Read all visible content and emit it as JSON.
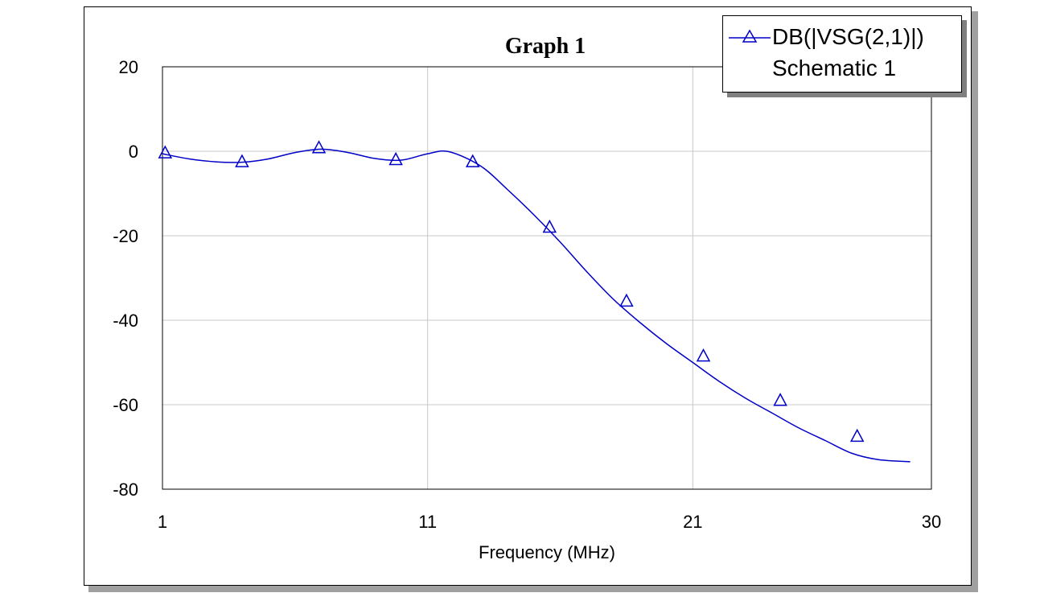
{
  "chart_data": {
    "type": "line",
    "title": "Graph 1",
    "xlabel": "Frequency (MHz)",
    "ylabel": "",
    "xlim": [
      1,
      30
    ],
    "ylim": [
      -80,
      20
    ],
    "xticks": [
      1,
      11,
      21,
      30
    ],
    "yticks": [
      20,
      0,
      -20,
      -40,
      -60,
      -80
    ],
    "grid": true,
    "legend_position": "top-right",
    "series": [
      {
        "name": "DB(|VSG(2,1)|)",
        "subtitle": "Schematic 1",
        "color": "#0000c8",
        "marker": "triangle",
        "x": [
          1,
          2,
          3,
          4,
          5,
          6,
          7,
          8,
          9,
          10,
          11,
          11.8,
          13,
          14,
          15,
          16,
          17,
          18,
          19,
          20,
          21,
          22,
          23,
          24,
          25,
          26,
          27,
          28,
          29.2
        ],
        "y": [
          -0.6,
          -1.8,
          -2.5,
          -2.6,
          -1.8,
          -0.3,
          0.5,
          -0.3,
          -1.7,
          -2.1,
          -0.6,
          -0.1,
          -3.5,
          -9.0,
          -15.0,
          -21.5,
          -28.5,
          -35.0,
          -40.5,
          -45.5,
          -50.0,
          -54.5,
          -58.5,
          -62.0,
          -65.5,
          -68.5,
          -71.5,
          -73.0,
          -73.5
        ],
        "markers_x": [
          1.1,
          4.0,
          6.9,
          9.8,
          12.7,
          15.6,
          18.5,
          21.4,
          24.3,
          27.2
        ],
        "markers_y": [
          -0.4,
          -2.5,
          0.8,
          -2.0,
          -2.5,
          -18.0,
          -35.5,
          -48.5,
          -59.0,
          -67.5
        ]
      }
    ]
  }
}
